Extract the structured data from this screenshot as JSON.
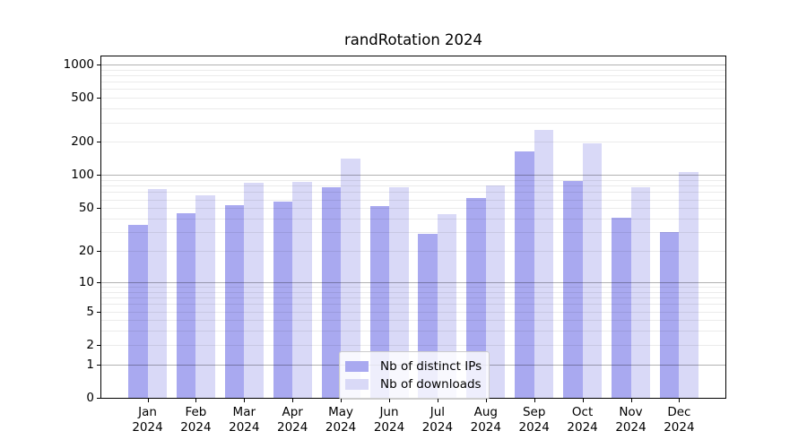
{
  "chart_data": {
    "type": "bar",
    "title": "randRotation 2024",
    "categories": [
      "Jan",
      "Feb",
      "Mar",
      "Apr",
      "May",
      "Jun",
      "Jul",
      "Aug",
      "Sep",
      "Oct",
      "Nov",
      "Dec"
    ],
    "category_year": "2024",
    "series": [
      {
        "name": "Nb of distinct IPs",
        "color": "#a9a9f0",
        "values": [
          35,
          45,
          53,
          57,
          78,
          52,
          29,
          62,
          165,
          89,
          41,
          30
        ]
      },
      {
        "name": "Nb of downloads",
        "color": "#d9d9f7",
        "values": [
          74,
          65,
          85,
          87,
          142,
          77,
          44,
          80,
          255,
          195,
          77,
          106
        ]
      }
    ],
    "xlabel": "",
    "ylabel": "",
    "yscale": "log1p",
    "yticks": [
      0,
      1,
      2,
      5,
      10,
      20,
      50,
      100,
      200,
      500,
      1000
    ],
    "ylim": [
      0,
      1180
    ],
    "grid": true,
    "grid_major_color": "rgba(0,0,0,0.30)",
    "grid_minor_color": "rgba(0,0,0,0.08)",
    "legend_position": "lower center",
    "axis_color": "#000000",
    "background_color": "#ffffff"
  }
}
